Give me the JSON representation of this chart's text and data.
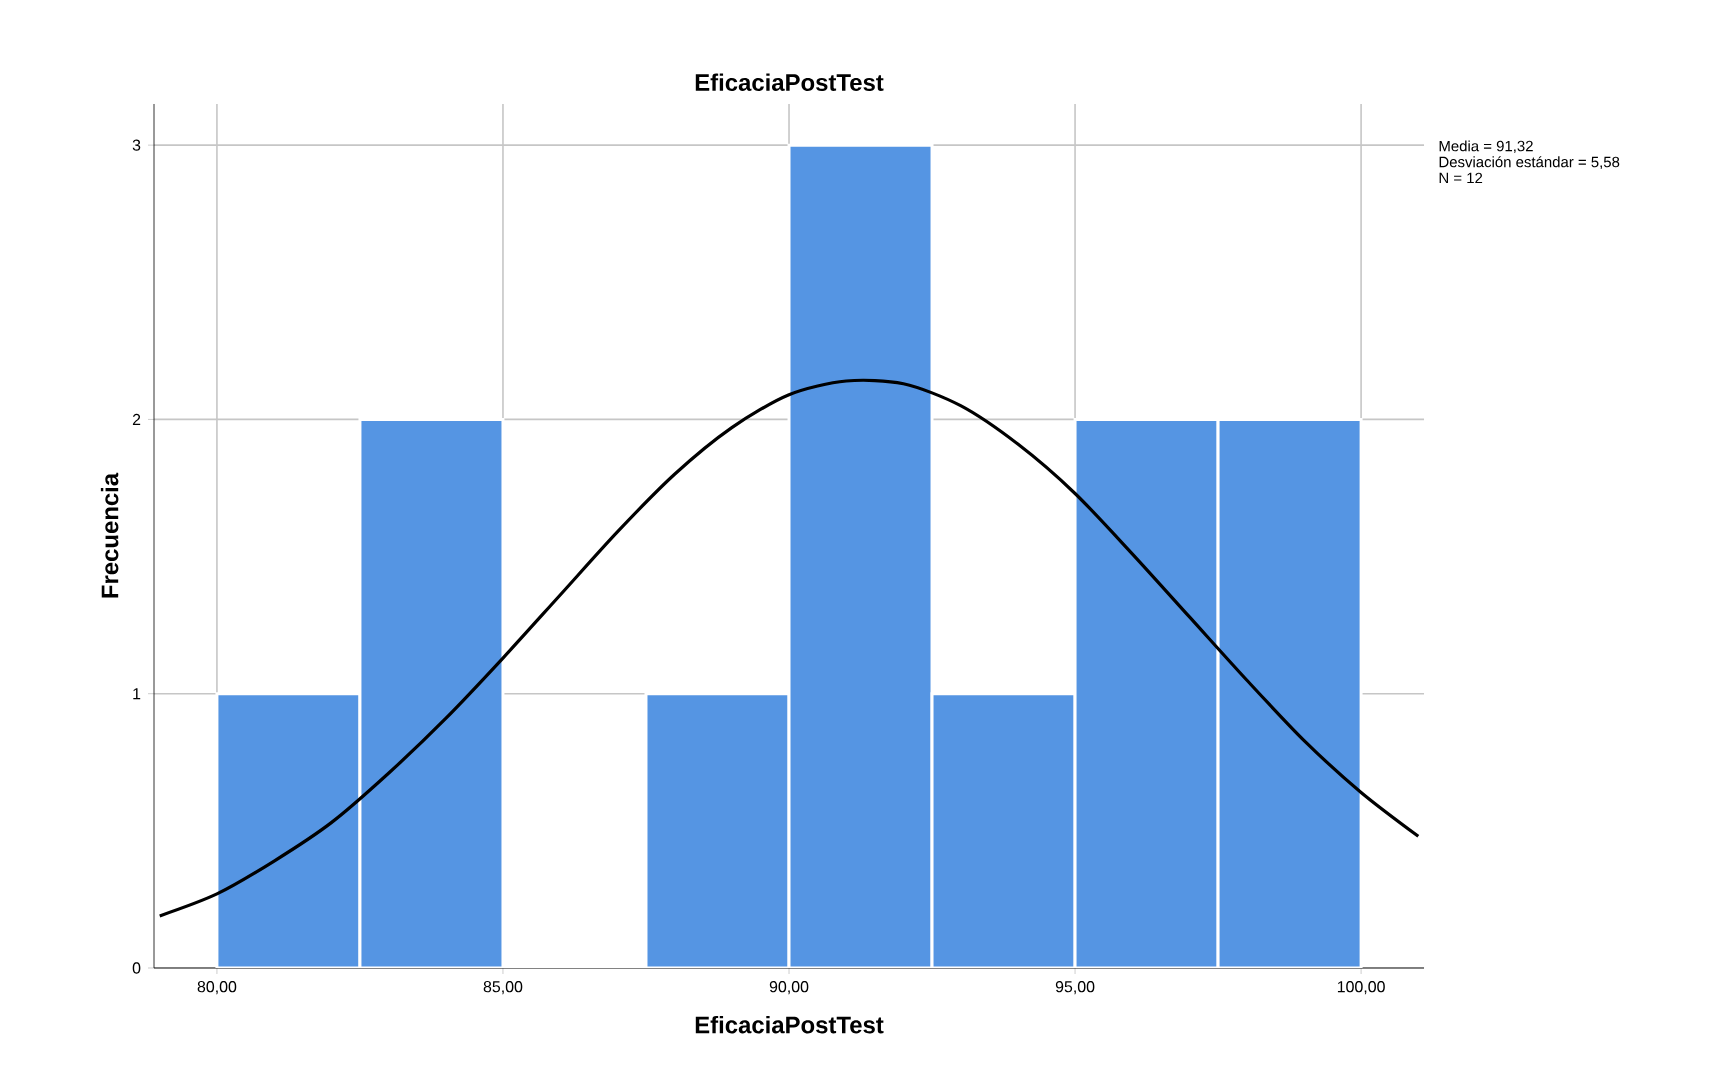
{
  "chart_data": {
    "type": "histogram",
    "title": "EficaciaPostTest",
    "xlabel": "EficaciaPostTest",
    "ylabel": "Frecuencia",
    "series": [
      {
        "color": "#5595e3",
        "bins": [
          80,
          82.5,
          85,
          87.5,
          90,
          92.5,
          95,
          97.5,
          100
        ],
        "values": [
          1,
          2,
          0,
          1,
          3,
          1,
          2,
          2
        ]
      },
      {
        "type": "line",
        "color": "#000000",
        "x": [
          79,
          80,
          81,
          82,
          83,
          84,
          85,
          86,
          87,
          88,
          89,
          90,
          91,
          92,
          93,
          94,
          95,
          96,
          97,
          98,
          99,
          100,
          101
        ],
        "values": [
          0.19,
          0.27,
          0.39,
          0.53,
          0.71,
          0.91,
          1.13,
          1.36,
          1.59,
          1.8,
          1.97,
          2.09,
          2.14,
          2.13,
          2.05,
          1.91,
          1.73,
          1.51,
          1.28,
          1.05,
          0.83,
          0.64,
          0.48
        ]
      }
    ],
    "xlim": [
      78.9,
      101.1
    ],
    "ylim": [
      0,
      3.15
    ],
    "xticks": [
      {
        "value": 80,
        "label": "80,00"
      },
      {
        "value": 85,
        "label": "85,00"
      },
      {
        "value": 90,
        "label": "90,00"
      },
      {
        "value": 95,
        "label": "95,00"
      },
      {
        "value": 100,
        "label": "100,00"
      }
    ],
    "yticks": [
      0,
      1,
      2,
      3
    ],
    "grid": true,
    "marker": "none",
    "line_style": "solid",
    "annotations": [
      "Media = 91,32",
      "Desviación estándar = 5,58",
      "N = 12"
    ]
  }
}
